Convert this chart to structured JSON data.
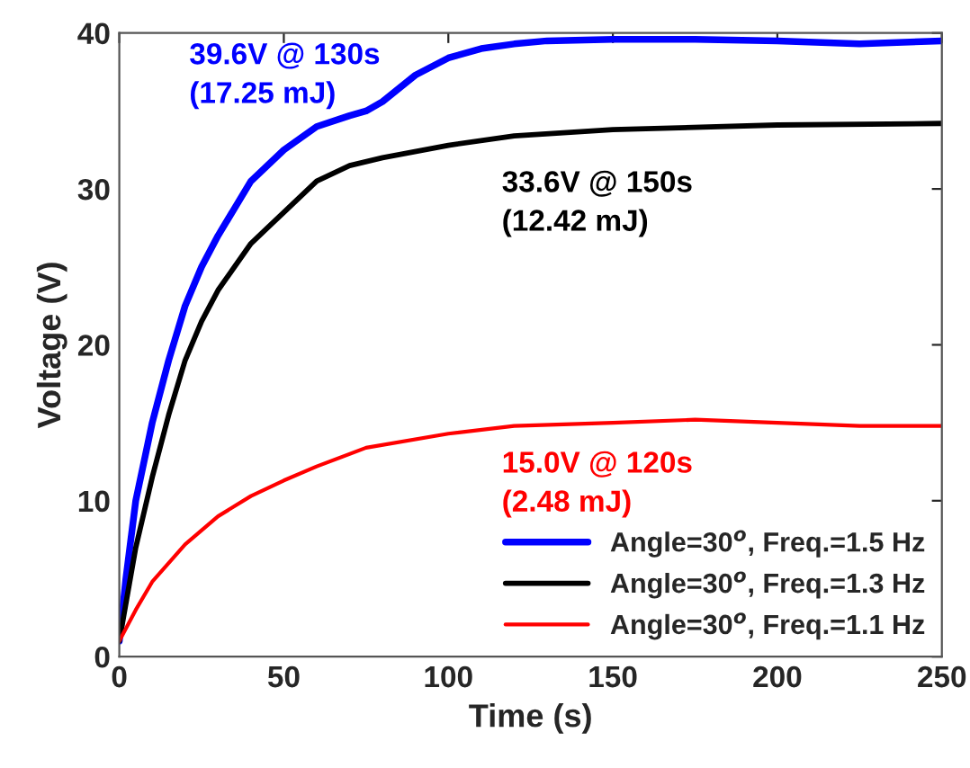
{
  "chart_data": {
    "type": "line",
    "xlabel": "Time (s)",
    "ylabel": "Voltage (V)",
    "xlim": [
      0,
      250
    ],
    "xticks": [
      0,
      50,
      100,
      150,
      200,
      250
    ],
    "ylim": [
      0,
      40
    ],
    "yticks": [
      0,
      10,
      20,
      30,
      40
    ],
    "grid": false,
    "legend": "bottom right",
    "line_style": "solid",
    "marker": "none",
    "series": [
      {
        "name": "Angle=30$^{o}$, Freq.=1.5 Hz",
        "color": "#0000ff",
        "x": [
          0,
          2,
          5,
          10,
          15,
          20,
          25,
          30,
          40,
          50,
          60,
          70,
          75,
          80,
          90,
          100,
          110,
          120,
          130,
          150,
          175,
          200,
          225,
          250
        ],
        "values": [
          1,
          5,
          10,
          15,
          19,
          22.5,
          25,
          27,
          30.5,
          32.5,
          34,
          34.7,
          35,
          35.6,
          37.3,
          38.4,
          39,
          39.3,
          39.5,
          39.6,
          39.6,
          39.5,
          39.3,
          39.5
        ]
      },
      {
        "name": "Angle=30$^{o}$, Freq.=1.3 Hz",
        "color": "#000000",
        "x": [
          0,
          5,
          10,
          15,
          20,
          25,
          30,
          40,
          50,
          60,
          70,
          80,
          100,
          120,
          150,
          200,
          250
        ],
        "values": [
          1,
          7,
          11.5,
          15.5,
          19,
          21.5,
          23.5,
          26.5,
          28.5,
          30.5,
          31.5,
          32,
          32.8,
          33.4,
          33.8,
          34.1,
          34.2
        ]
      },
      {
        "name": "Angle=30$^{o}$, Freq.=1.1 Hz",
        "color": "#ff0000",
        "x": [
          0,
          5,
          10,
          20,
          30,
          40,
          50,
          60,
          75,
          100,
          120,
          150,
          175,
          200,
          225,
          250
        ],
        "values": [
          1,
          3,
          4.8,
          7.2,
          9,
          10.3,
          11.3,
          12.2,
          13.4,
          14.3,
          14.8,
          15,
          15.2,
          15,
          14.8,
          14.8
        ]
      }
    ],
    "annotations": [
      "39.6V @ 130s\n(17.25 mJ)",
      "33.6V @ 150s\n(12.42 mJ)",
      "15.0V @ 120s\n(2.48 mJ)"
    ]
  }
}
